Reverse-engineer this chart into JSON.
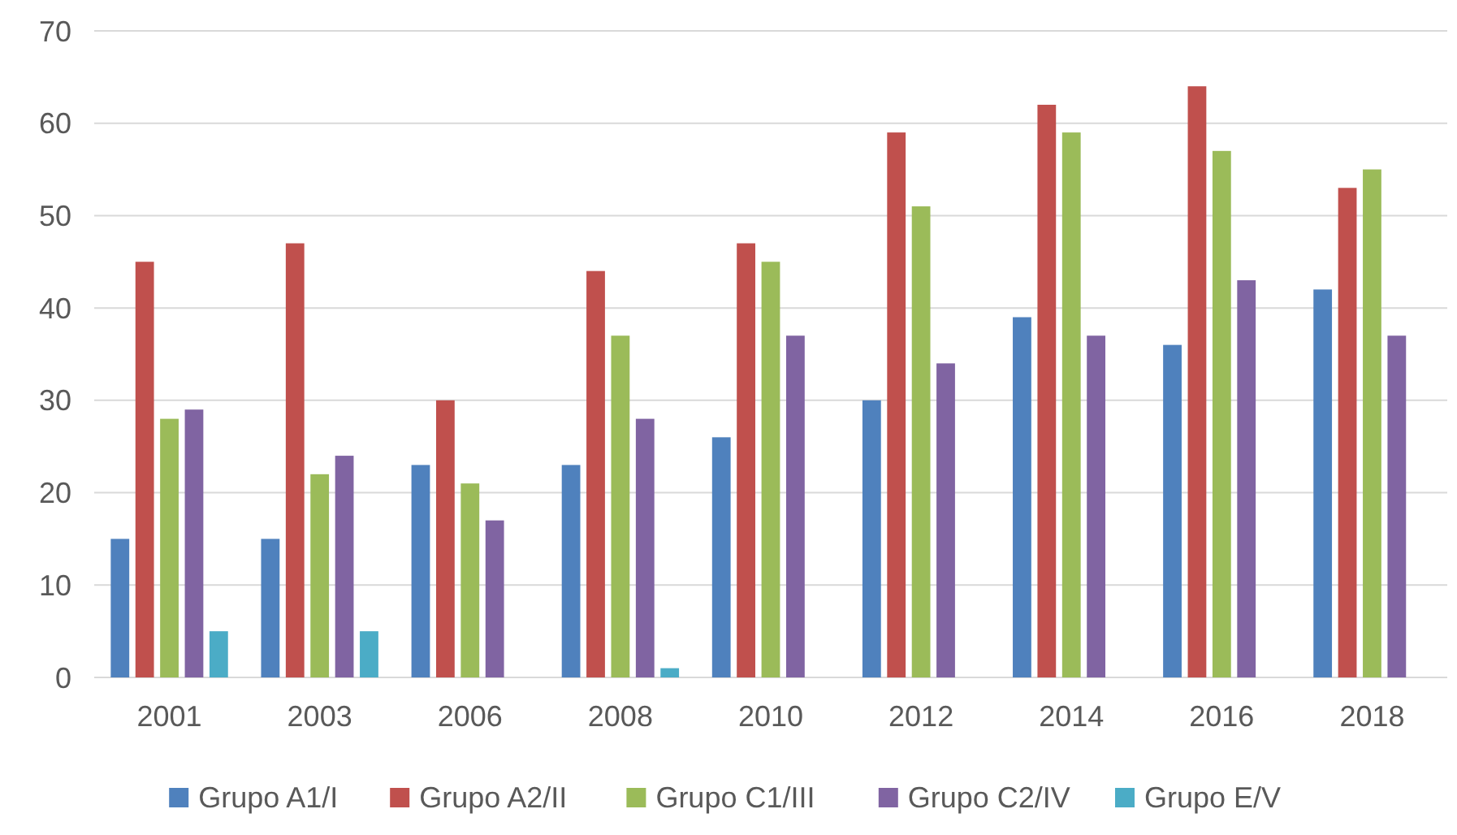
{
  "chart_data": {
    "type": "bar",
    "categories": [
      "2001",
      "2003",
      "2006",
      "2008",
      "2010",
      "2012",
      "2014",
      "2016",
      "2018"
    ],
    "series": [
      {
        "name": "Grupo A1/I",
        "color": "#4f81bd",
        "values": [
          15,
          15,
          23,
          23,
          26,
          30,
          39,
          36,
          42
        ]
      },
      {
        "name": "Grupo A2/II",
        "color": "#c0504d",
        "values": [
          45,
          47,
          30,
          44,
          47,
          59,
          62,
          64,
          53
        ]
      },
      {
        "name": "Grupo C1/III",
        "color": "#9bbb59",
        "values": [
          28,
          22,
          21,
          37,
          45,
          51,
          59,
          57,
          55
        ]
      },
      {
        "name": "Grupo C2/IV",
        "color": "#8064a2",
        "values": [
          29,
          24,
          17,
          28,
          37,
          34,
          37,
          43,
          37
        ]
      },
      {
        "name": "Grupo E/V",
        "color": "#4bacc6",
        "values": [
          5,
          5,
          null,
          1,
          null,
          null,
          null,
          null,
          null
        ]
      }
    ],
    "ylim": [
      0,
      70
    ],
    "yticks": [
      0,
      10,
      20,
      30,
      40,
      50,
      60,
      70
    ],
    "grid": "y",
    "legend": "bottom"
  }
}
